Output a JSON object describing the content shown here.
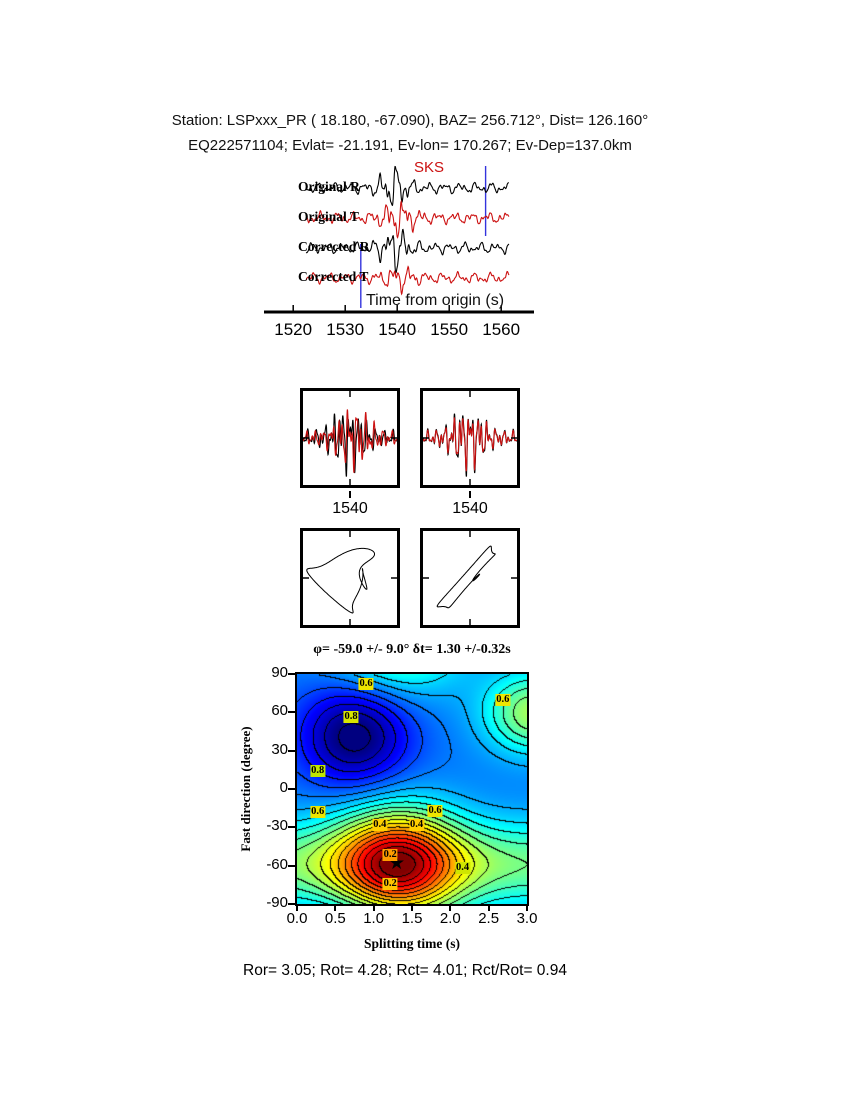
{
  "header": {
    "line1": "Station: LSPxxx_PR (  18.180,  -67.090), BAZ=  256.712°, Dist=  126.160°",
    "line2": "EQ222571104; Evlat= -21.191, Ev-lon= 170.267; Ev-Dep=137.0km"
  },
  "footer": {
    "stats": "Ror= 3.05; Rot= 4.28; Rct= 4.01; Rct/Rot= 0.94"
  },
  "chart_data": [
    {
      "id": "seismograms",
      "type": "line",
      "xlabel": "Time from origin (s)",
      "x_ticks": [
        1520,
        1530,
        1540,
        1550,
        1560
      ],
      "x_range": [
        1514,
        1569.8
      ],
      "trace_range": [
        1522.5,
        1561.5
      ],
      "phase_label": "SKS",
      "phase_time": 1540,
      "window": [
        1533,
        1557
      ],
      "window_color": "#3333dd",
      "traces": [
        {
          "label": "Original R",
          "color": "#000000",
          "scale": 12,
          "comps": [
            {
              "f": 0.33,
              "a": 0.5,
              "p": 0.4
            },
            {
              "f": 0.6,
              "a": 0.33,
              "p": 2.2
            },
            {
              "f": 1.05,
              "a": 0.22,
              "p": 4.5
            },
            {
              "f": 1.8,
              "a": 0.1,
              "p": 1.0
            }
          ],
          "env": {
            "base": 0.5,
            "boost": 1.7,
            "c": 1539.3,
            "w": 2.8
          }
        },
        {
          "label": "Original T",
          "color": "#cc1111",
          "scale": 11,
          "comps": [
            {
              "f": 0.31,
              "a": 0.5,
              "p": 2.6
            },
            {
              "f": 0.64,
              "a": 0.35,
              "p": 0.7
            },
            {
              "f": 1.1,
              "a": 0.24,
              "p": 3.1
            },
            {
              "f": 2.0,
              "a": 0.1,
              "p": 5.1
            }
          ],
          "env": {
            "base": 0.55,
            "boost": 1.4,
            "c": 1540.2,
            "w": 3.2
          }
        },
        {
          "label": "Corrected R",
          "color": "#000000",
          "scale": 12,
          "comps": [
            {
              "f": 0.34,
              "a": 0.5,
              "p": 1.3
            },
            {
              "f": 0.58,
              "a": 0.34,
              "p": 3.5
            },
            {
              "f": 1.0,
              "a": 0.24,
              "p": 0.1
            },
            {
              "f": 1.75,
              "a": 0.1,
              "p": 2.7
            }
          ],
          "env": {
            "base": 0.5,
            "boost": 1.7,
            "c": 1539.5,
            "w": 2.8
          }
        },
        {
          "label": "Corrected T",
          "color": "#cc1111",
          "scale": 11,
          "comps": [
            {
              "f": 0.32,
              "a": 0.5,
              "p": 4.2
            },
            {
              "f": 0.62,
              "a": 0.33,
              "p": 1.9
            },
            {
              "f": 1.15,
              "a": 0.2,
              "p": 5.3
            },
            {
              "f": 1.9,
              "a": 0.1,
              "p": 0.9
            }
          ],
          "env": {
            "base": 0.55,
            "boost": 0.9,
            "c": 1540.5,
            "w": 3.0
          }
        }
      ]
    },
    {
      "id": "window-original",
      "type": "line",
      "x_range": [
        1529,
        1551
      ],
      "x_tick_label": "1540",
      "traces": [
        {
          "color": "#000000",
          "scale": 16,
          "comps": [
            {
              "f": 0.5,
              "a": 0.55,
              "p": 1.2
            },
            {
              "f": 0.95,
              "a": 0.5,
              "p": 4.0
            },
            {
              "f": 1.6,
              "a": 0.3,
              "p": 0.4
            }
          ],
          "env": {
            "base": 0.4,
            "boost": 1.5,
            "c": 1539.5,
            "w": 4.5
          }
        },
        {
          "color": "#cc1111",
          "scale": 15,
          "comps": [
            {
              "f": 0.5,
              "a": 0.55,
              "p": 2.5
            },
            {
              "f": 0.95,
              "a": 0.5,
              "p": 5.3
            },
            {
              "f": 1.6,
              "a": 0.3,
              "p": 1.8
            }
          ],
          "env": {
            "base": 0.4,
            "boost": 1.5,
            "c": 1540.8,
            "w": 4.5
          }
        }
      ]
    },
    {
      "id": "window-corrected",
      "type": "line",
      "x_range": [
        1529,
        1551
      ],
      "x_tick_label": "1540",
      "traces": [
        {
          "color": "#000000",
          "scale": 16,
          "comps": [
            {
              "f": 0.5,
              "a": 0.55,
              "p": 1.2
            },
            {
              "f": 0.95,
              "a": 0.5,
              "p": 4.0
            },
            {
              "f": 1.6,
              "a": 0.3,
              "p": 0.4
            }
          ],
          "env": {
            "base": 0.4,
            "boost": 1.5,
            "c": 1539.5,
            "w": 4.5
          }
        },
        {
          "color": "#cc1111",
          "scale": 14,
          "comps": [
            {
              "f": 0.5,
              "a": 0.55,
              "p": 1.35
            },
            {
              "f": 0.95,
              "a": 0.5,
              "p": 4.15
            },
            {
              "f": 1.6,
              "a": 0.3,
              "p": 0.55
            }
          ],
          "env": {
            "base": 0.4,
            "boost": 1.5,
            "c": 1539.6,
            "w": 4.5
          }
        }
      ]
    },
    {
      "id": "particle-motion-original",
      "type": "scatter",
      "curve": {
        "n": 700,
        "scale": 27,
        "x": [
          {
            "f": 1,
            "a": 0.85,
            "p": 0.0
          },
          {
            "f": 2,
            "a": 0.5,
            "p": 1.2
          },
          {
            "f": 3,
            "a": 0.28,
            "p": 2.1
          },
          {
            "f": 5,
            "a": 0.12,
            "p": 0.6
          }
        ],
        "y": [
          {
            "f": 1,
            "a": 0.8,
            "p": 1.45
          },
          {
            "f": 2,
            "a": 0.45,
            "p": 2.9
          },
          {
            "f": 3,
            "a": 0.3,
            "p": 0.5
          },
          {
            "f": 5,
            "a": 0.12,
            "p": 3.2
          }
        ]
      }
    },
    {
      "id": "particle-motion-corrected",
      "type": "scatter",
      "curve": {
        "n": 700,
        "scale": 27,
        "x": [
          {
            "f": 1,
            "a": 0.9,
            "p": 0.3
          },
          {
            "f": 2,
            "a": 0.38,
            "p": 1.1
          },
          {
            "f": 4,
            "a": 0.18,
            "p": 2.5
          }
        ],
        "y": [
          {
            "f": 1,
            "a": 1.0,
            "p": 0.62
          },
          {
            "f": 2,
            "a": 0.42,
            "p": 1.35
          },
          {
            "f": 4,
            "a": 0.2,
            "p": 2.2
          }
        ]
      }
    },
    {
      "id": "misfit-contour",
      "type": "heatmap",
      "title": "φ= -59.0 +/- 9.0° δt= 1.30 +/-0.32s",
      "xlabel": "Splitting time (s)",
      "ylabel": "Fast direction (degree)",
      "x_ticks": [
        "0.0",
        "0.5",
        "1.0",
        "1.5",
        "2.0",
        "2.5",
        "3.0"
      ],
      "y_ticks": [
        90,
        60,
        30,
        0,
        -30,
        -60,
        -90
      ],
      "x_range": [
        0,
        3
      ],
      "y_range": [
        -90,
        90
      ],
      "best": {
        "phi": -59.0,
        "phi_err": 9.0,
        "dt": 1.3,
        "dt_err": 0.32
      },
      "marker": "★",
      "field": {
        "base": 0.8,
        "clamp": [
          0.03,
          1.05
        ],
        "band_step": 0.05,
        "terms": [
          {
            "amp": -0.55,
            "t0": 1.3,
            "phi0": -59,
            "st": 0.55,
            "sphi": 30
          },
          {
            "amp": -0.25,
            "t0": 1.3,
            "phi0": -59,
            "st": 9,
            "sphi": 24
          },
          {
            "amp": 0.28,
            "t0": 0.75,
            "phi0": 42,
            "st": 0.5,
            "sphi": 28
          },
          {
            "amp": -0.3,
            "t0": 3.1,
            "phi0": 60,
            "st": 0.45,
            "sphi": 22
          },
          {
            "amp": -0.3,
            "t0": 1.3,
            "phi0": 121,
            "st": 0.6,
            "sphi": 30
          },
          {
            "amp": 0.22,
            "t0": 0.75,
            "phi0": -138,
            "st": 0.5,
            "sphi": 28
          }
        ]
      },
      "contour_labels": [
        {
          "text": "0.6",
          "fx": 0.3,
          "fy": 0.045,
          "bg": "#eee600"
        },
        {
          "text": "0.8",
          "fx": 0.235,
          "fy": 0.185,
          "bg": "#d8e600"
        },
        {
          "text": "0.6",
          "fx": 0.895,
          "fy": 0.115,
          "bg": "#eee600"
        },
        {
          "text": "0.8",
          "fx": 0.09,
          "fy": 0.42,
          "bg": "#bfe600"
        },
        {
          "text": "0.6",
          "fx": 0.09,
          "fy": 0.6,
          "bg": "#eee600"
        },
        {
          "text": "0.6",
          "fx": 0.6,
          "fy": 0.595,
          "bg": "#eee600"
        },
        {
          "text": "0.4",
          "fx": 0.36,
          "fy": 0.655,
          "bg": "#ffcf00"
        },
        {
          "text": "0.4",
          "fx": 0.52,
          "fy": 0.655,
          "bg": "#ffcf00"
        },
        {
          "text": "0.2",
          "fx": 0.405,
          "fy": 0.785,
          "bg": "#ff9d00"
        },
        {
          "text": "0.2",
          "fx": 0.405,
          "fy": 0.915,
          "bg": "#ffc400"
        },
        {
          "text": "0.4",
          "fx": 0.72,
          "fy": 0.845,
          "bg": "#cfe600"
        }
      ]
    }
  ]
}
